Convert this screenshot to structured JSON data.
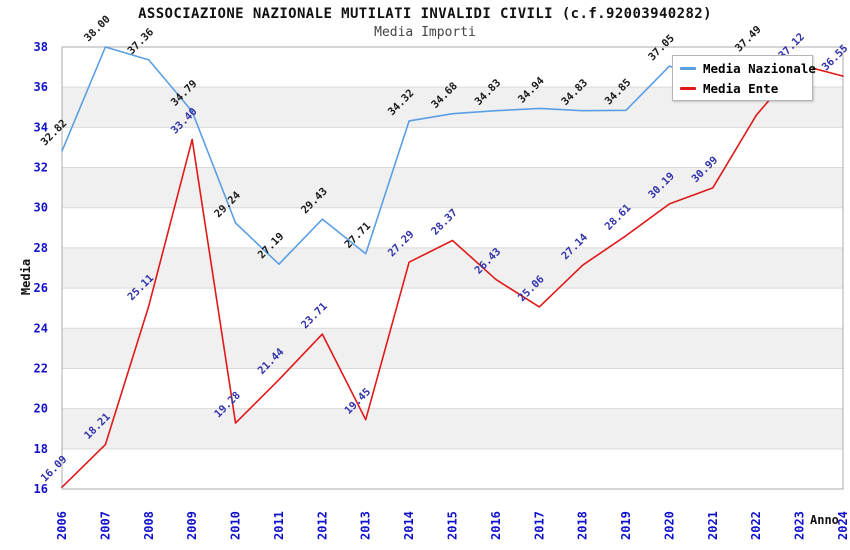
{
  "title": "ASSOCIAZIONE NAZIONALE MUTILATI INVALIDI CIVILI (c.f.92003940282)",
  "subtitle": "Media Importi",
  "legend": {
    "items": [
      {
        "label": "Media Nazionale"
      },
      {
        "label": "Media Ente"
      }
    ]
  },
  "chart_data": {
    "type": "line",
    "x": [
      2006,
      2007,
      2008,
      2009,
      2010,
      2011,
      2012,
      2013,
      2014,
      2015,
      2016,
      2017,
      2018,
      2019,
      2020,
      2021,
      2022,
      2023,
      2024
    ],
    "xlabel": "Anno",
    "ylabel": "Media",
    "ylim": [
      16,
      38
    ],
    "ytick_step": 2,
    "grid": true,
    "shaded_bands": [
      [
        18,
        20
      ],
      [
        22,
        24
      ],
      [
        26,
        28
      ],
      [
        30,
        32
      ],
      [
        34,
        36
      ]
    ],
    "legend_position": "top-right",
    "series": [
      {
        "name": "Media Nazionale",
        "color": "#5B9FE3",
        "label_color": "#1A1A1A",
        "values": [
          32.82,
          38.0,
          37.36,
          34.79,
          29.24,
          27.19,
          29.43,
          27.71,
          34.32,
          34.68,
          34.83,
          34.94,
          34.83,
          34.85,
          37.05,
          36.3,
          37.49,
          null,
          null
        ],
        "labels": [
          "32.82",
          "38.00",
          "37.36",
          "34.79",
          "29.24",
          "27.19",
          "29.43",
          "27.71",
          "34.32",
          "34.68",
          "34.83",
          "34.94",
          "34.83",
          "34.85",
          "37.05",
          "",
          "37.49",
          "",
          ""
        ]
      },
      {
        "name": "Media Ente",
        "color": "#E01919",
        "label_color": "#3232AA",
        "values": [
          16.09,
          18.21,
          25.11,
          33.4,
          19.28,
          21.44,
          23.71,
          19.45,
          27.29,
          28.37,
          26.43,
          25.06,
          27.14,
          28.61,
          30.19,
          30.99,
          34.6,
          37.12,
          36.55
        ],
        "labels": [
          "16.09",
          "18.21",
          "25.11",
          "33.40",
          "19.28",
          "21.44",
          "23.71",
          "19.45",
          "27.29",
          "28.37",
          "26.43",
          "25.06",
          "27.14",
          "28.61",
          "30.19",
          "30.99",
          "",
          "37.12",
          "36.55"
        ]
      }
    ],
    "colors": {
      "axis_tick": "#1111CC",
      "band": "#F0F0F0",
      "grid": "#D9D9D9",
      "border": "#ABABAB"
    }
  }
}
